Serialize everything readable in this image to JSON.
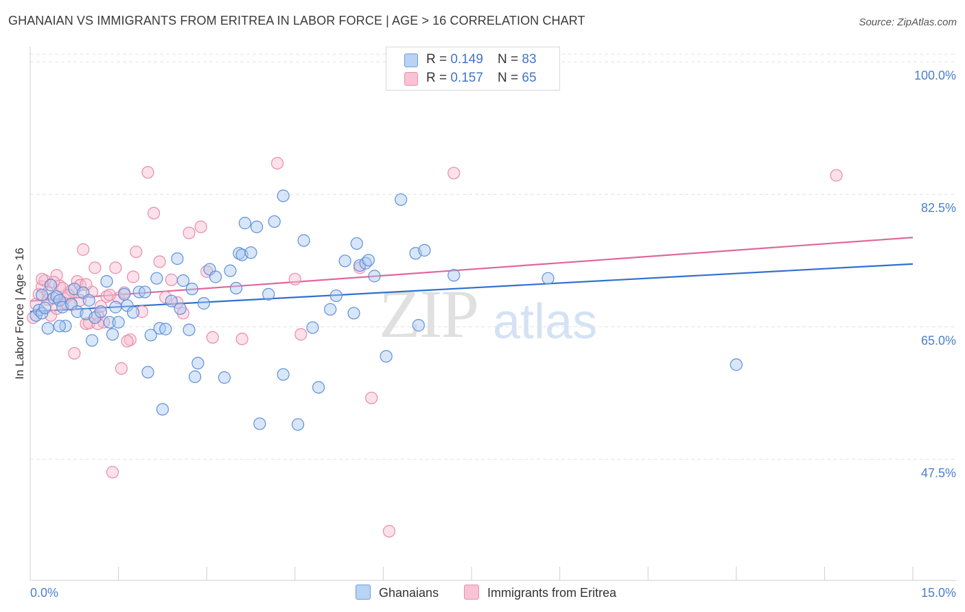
{
  "header": {
    "title": "GHANAIAN VS IMMIGRANTS FROM ERITREA IN LABOR FORCE | AGE > 16 CORRELATION CHART",
    "source": "Source: ZipAtlas.com"
  },
  "watermark": {
    "zip": "ZIP",
    "atlas": "atlas"
  },
  "legend": {
    "rows": [
      {
        "r_label": "R = ",
        "r_value": "0.149",
        "n_label": "N = ",
        "n_value": "83",
        "color": "#b8d3f3"
      },
      {
        "r_label": "R = ",
        "r_value": "0.157",
        "n_label": "N = ",
        "n_value": "65",
        "color": "#f8c3d4"
      }
    ]
  },
  "bottom_legend": {
    "series1": "Ghanaians",
    "series2": "Immigrants from Eritrea"
  },
  "chart_data": {
    "type": "scatter",
    "title": "GHANAIAN VS IMMIGRANTS FROM ERITREA IN LABOR FORCE | AGE > 16 CORRELATION CHART",
    "xlabel": "",
    "ylabel": "In Labor Force | Age > 16",
    "xlim": [
      0,
      15
    ],
    "ylim": [
      31.5,
      102
    ],
    "y_ticks": [
      100,
      82.5,
      65,
      47.5
    ],
    "y_tick_labels": [
      "100.0%",
      "82.5%",
      "65.0%",
      "47.5%"
    ],
    "x_tick_labels": [
      "0.0%",
      "15.0%"
    ],
    "x_minor_ticks": [
      0,
      1.5,
      3,
      4.5,
      6,
      7.5,
      9,
      10.5,
      12,
      13.5,
      15
    ],
    "colors": {
      "blue_stroke": "#5b90d9",
      "blue_fill": "#a9c8ef",
      "pink_stroke": "#e98aaa",
      "pink_fill": "#f6bccf",
      "blue_line": "#2f6fcf",
      "pink_line": "#e0679a"
    },
    "series": [
      {
        "name": "Ghanaians",
        "trend": {
          "x0": 0,
          "y0": 67.0,
          "x1": 15,
          "y1": 73.3
        },
        "points": [
          [
            0.1,
            66.5
          ],
          [
            0.15,
            67.2
          ],
          [
            0.2,
            66.8
          ],
          [
            0.25,
            67.5
          ],
          [
            0.3,
            64.8
          ],
          [
            0.4,
            68.8
          ],
          [
            0.45,
            69.0
          ],
          [
            0.5,
            68.5
          ],
          [
            0.55,
            67.6
          ],
          [
            0.6,
            65.1
          ],
          [
            0.7,
            68.0
          ],
          [
            0.75,
            70.0
          ],
          [
            0.8,
            67.0
          ],
          [
            0.9,
            69.5
          ],
          [
            0.95,
            66.7
          ],
          [
            1.0,
            68.5
          ],
          [
            1.05,
            63.2
          ],
          [
            1.1,
            66.2
          ],
          [
            1.2,
            67.0
          ],
          [
            1.3,
            71.0
          ],
          [
            1.35,
            65.6
          ],
          [
            1.4,
            64.0
          ],
          [
            1.45,
            67.6
          ],
          [
            1.5,
            65.6
          ],
          [
            1.6,
            69.3
          ],
          [
            1.65,
            67.8
          ],
          [
            1.75,
            66.9
          ],
          [
            1.85,
            69.6
          ],
          [
            1.95,
            69.6
          ],
          [
            2.0,
            59.0
          ],
          [
            2.05,
            63.9
          ],
          [
            2.15,
            71.4
          ],
          [
            2.2,
            64.8
          ],
          [
            2.25,
            54.1
          ],
          [
            2.3,
            64.7
          ],
          [
            2.4,
            68.4
          ],
          [
            2.5,
            74.0
          ],
          [
            2.55,
            67.4
          ],
          [
            2.6,
            71.1
          ],
          [
            2.7,
            64.6
          ],
          [
            2.75,
            70.0
          ],
          [
            2.8,
            58.4
          ],
          [
            2.85,
            60.2
          ],
          [
            2.95,
            68.1
          ],
          [
            3.05,
            72.6
          ],
          [
            3.15,
            71.6
          ],
          [
            3.3,
            58.3
          ],
          [
            3.4,
            72.4
          ],
          [
            3.5,
            70.1
          ],
          [
            3.55,
            74.7
          ],
          [
            3.6,
            74.5
          ],
          [
            3.65,
            78.7
          ],
          [
            3.75,
            74.8
          ],
          [
            3.85,
            78.2
          ],
          [
            3.9,
            52.2
          ],
          [
            4.05,
            69.3
          ],
          [
            4.15,
            78.9
          ],
          [
            4.3,
            82.3
          ],
          [
            4.3,
            58.7
          ],
          [
            4.55,
            52.1
          ],
          [
            4.65,
            76.4
          ],
          [
            4.8,
            64.9
          ],
          [
            4.9,
            57.0
          ],
          [
            5.1,
            67.3
          ],
          [
            5.2,
            69.1
          ],
          [
            5.35,
            73.7
          ],
          [
            5.5,
            66.8
          ],
          [
            5.55,
            76.0
          ],
          [
            5.6,
            73.1
          ],
          [
            5.7,
            73.4
          ],
          [
            5.75,
            73.8
          ],
          [
            5.85,
            71.7
          ],
          [
            6.05,
            61.1
          ],
          [
            6.3,
            81.8
          ],
          [
            6.55,
            74.7
          ],
          [
            6.7,
            75.1
          ],
          [
            6.6,
            65.2
          ],
          [
            7.2,
            71.8
          ],
          [
            8.8,
            71.4
          ],
          [
            12.0,
            60.0
          ],
          [
            0.2,
            69.2
          ],
          [
            0.5,
            65.1
          ],
          [
            0.35,
            70.5
          ]
        ]
      },
      {
        "name": "Immigrants from Eritrea",
        "trend": {
          "x0": 0,
          "y0": 68.4,
          "x1": 15,
          "y1": 76.8
        },
        "points": [
          [
            0.1,
            68.0
          ],
          [
            0.15,
            69.3
          ],
          [
            0.2,
            70.3
          ],
          [
            0.25,
            71.1
          ],
          [
            0.3,
            69.5
          ],
          [
            0.35,
            66.5
          ],
          [
            0.45,
            71.8
          ],
          [
            0.5,
            70.4
          ],
          [
            0.55,
            70.1
          ],
          [
            0.6,
            68.8
          ],
          [
            0.7,
            69.8
          ],
          [
            0.75,
            61.5
          ],
          [
            0.8,
            71.0
          ],
          [
            0.85,
            68.5
          ],
          [
            0.9,
            75.2
          ],
          [
            0.95,
            65.4
          ],
          [
            1.0,
            65.5
          ],
          [
            1.05,
            69.6
          ],
          [
            1.1,
            72.8
          ],
          [
            1.15,
            66.5
          ],
          [
            1.2,
            67.7
          ],
          [
            1.3,
            69.0
          ],
          [
            1.4,
            45.8
          ],
          [
            1.45,
            72.8
          ],
          [
            1.5,
            68.8
          ],
          [
            1.55,
            59.5
          ],
          [
            1.6,
            69.5
          ],
          [
            1.7,
            63.3
          ],
          [
            1.75,
            71.6
          ],
          [
            1.8,
            74.9
          ],
          [
            1.9,
            67.0
          ],
          [
            2.0,
            85.4
          ],
          [
            2.1,
            80.0
          ],
          [
            2.2,
            73.6
          ],
          [
            2.3,
            68.9
          ],
          [
            2.4,
            71.2
          ],
          [
            2.5,
            68.2
          ],
          [
            2.6,
            66.8
          ],
          [
            2.7,
            77.4
          ],
          [
            2.9,
            78.2
          ],
          [
            3.0,
            72.3
          ],
          [
            3.1,
            63.6
          ],
          [
            3.6,
            63.4
          ],
          [
            4.2,
            86.6
          ],
          [
            4.5,
            71.3
          ],
          [
            4.6,
            64.0
          ],
          [
            5.6,
            72.8
          ],
          [
            5.8,
            55.6
          ],
          [
            6.1,
            38.0
          ],
          [
            7.2,
            85.3
          ],
          [
            13.7,
            85.0
          ],
          [
            0.4,
            70.9
          ],
          [
            0.65,
            69.2
          ],
          [
            0.85,
            70.5
          ],
          [
            1.25,
            65.6
          ],
          [
            0.3,
            68.6
          ],
          [
            0.55,
            68.2
          ],
          [
            0.95,
            70.6
          ],
          [
            1.35,
            69.2
          ],
          [
            1.15,
            65.4
          ],
          [
            0.2,
            71.3
          ],
          [
            0.45,
            67.4
          ],
          [
            0.7,
            67.9
          ],
          [
            1.65,
            63.1
          ],
          [
            0.05,
            66.2
          ]
        ]
      }
    ]
  }
}
